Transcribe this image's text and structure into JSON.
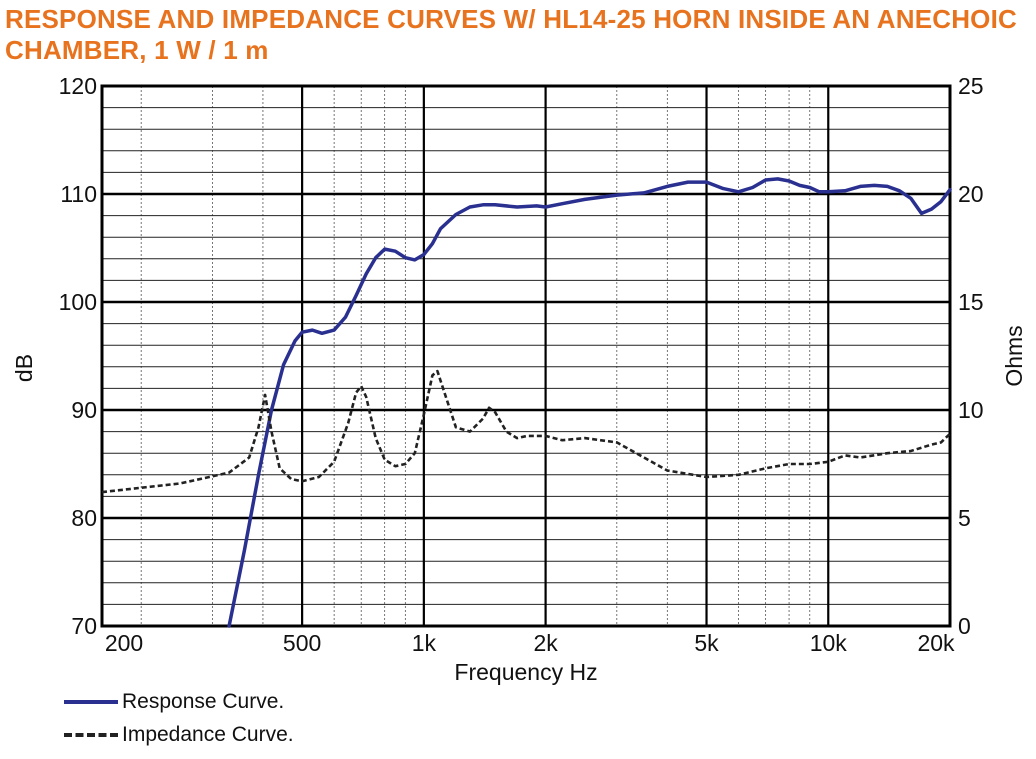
{
  "chart_data": {
    "type": "line",
    "title": "RESPONSE AND IMPEDANCE CURVES W/ HL14-25 HORN INSIDE AN ANECHOIC CHAMBER, 1 W / 1 m",
    "xlabel": "Frequency Hz",
    "ylabel_left": "dB",
    "ylabel_right": "Ohms",
    "x_scale": "log",
    "xlim": [
      160,
      20000
    ],
    "ylim_left": [
      70,
      120
    ],
    "ylim_right": [
      0,
      25
    ],
    "x_ticks": [
      {
        "value": 200,
        "label": "200"
      },
      {
        "value": 500,
        "label": "500"
      },
      {
        "value": 1000,
        "label": "1k"
      },
      {
        "value": 2000,
        "label": "2k"
      },
      {
        "value": 5000,
        "label": "5k"
      },
      {
        "value": 10000,
        "label": "10k"
      },
      {
        "value": 20000,
        "label": "20k"
      }
    ],
    "y_ticks_left": [
      70,
      80,
      90,
      100,
      110,
      120
    ],
    "y_ticks_right": [
      0,
      5,
      10,
      15,
      20,
      25
    ],
    "grid": true,
    "legend_position": "bottom-left",
    "colors": {
      "response": "#2a3090",
      "impedance": "#222222",
      "title": "#e8731f"
    },
    "series": [
      {
        "name": "Response Curve.",
        "axis": "left",
        "style": "solid",
        "x": [
          330,
          360,
          390,
          420,
          450,
          480,
          500,
          530,
          560,
          600,
          640,
          680,
          720,
          760,
          800,
          850,
          900,
          950,
          1000,
          1050,
          1100,
          1200,
          1300,
          1400,
          1500,
          1700,
          1900,
          2000,
          2200,
          2500,
          3000,
          3500,
          4000,
          4500,
          5000,
          5500,
          6000,
          6500,
          7000,
          7500,
          8000,
          8500,
          9000,
          9500,
          10000,
          11000,
          12000,
          13000,
          14000,
          15000,
          16000,
          17000,
          18000,
          19000,
          20000
        ],
        "y": [
          70,
          77,
          84,
          90,
          94.2,
          96.4,
          97.2,
          97.4,
          97.1,
          97.4,
          98.6,
          100.6,
          102.6,
          104.1,
          104.9,
          104.7,
          104.1,
          103.9,
          104.4,
          105.4,
          106.8,
          108.1,
          108.8,
          109.0,
          109.0,
          108.8,
          108.9,
          108.8,
          109.1,
          109.5,
          109.9,
          110.1,
          110.7,
          111.1,
          111.1,
          110.5,
          110.2,
          110.6,
          111.3,
          111.4,
          111.2,
          110.8,
          110.6,
          110.2,
          110.2,
          110.3,
          110.7,
          110.8,
          110.7,
          110.3,
          109.6,
          108.2,
          108.6,
          109.3,
          110.4
        ]
      },
      {
        "name": "Impedance Curve.",
        "axis": "right",
        "style": "dashed",
        "x": [
          160,
          250,
          330,
          370,
          390,
          405,
          420,
          440,
          470,
          500,
          550,
          600,
          650,
          680,
          700,
          720,
          760,
          800,
          850,
          900,
          950,
          1000,
          1050,
          1080,
          1120,
          1200,
          1300,
          1400,
          1450,
          1500,
          1600,
          1700,
          1800,
          2000,
          2200,
          2500,
          3000,
          4000,
          5000,
          6000,
          7000,
          8000,
          9000,
          10000,
          11000,
          12000,
          14000,
          16000,
          18000,
          19000,
          20000
        ],
        "y": [
          6.2,
          6.6,
          7.1,
          7.8,
          9.2,
          10.7,
          9.0,
          7.3,
          6.8,
          6.7,
          6.9,
          7.6,
          9.4,
          10.8,
          11.1,
          10.6,
          8.7,
          7.7,
          7.4,
          7.5,
          8.0,
          9.8,
          11.6,
          11.8,
          10.9,
          9.2,
          9.0,
          9.6,
          10.1,
          9.9,
          9.0,
          8.7,
          8.8,
          8.8,
          8.6,
          8.7,
          8.5,
          7.2,
          6.9,
          7.0,
          7.3,
          7.5,
          7.5,
          7.6,
          7.9,
          7.8,
          8.0,
          8.1,
          8.4,
          8.5,
          8.9
        ]
      }
    ]
  }
}
